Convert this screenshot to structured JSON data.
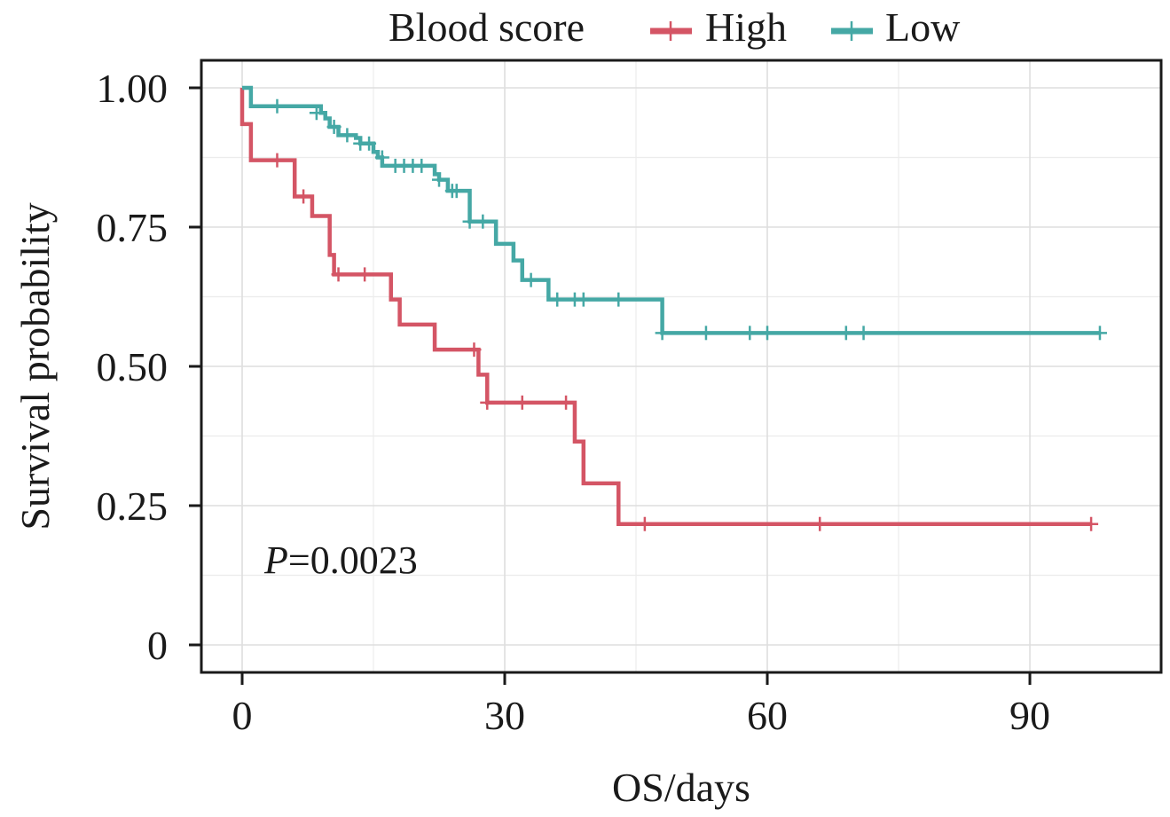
{
  "chart_data": {
    "type": "line",
    "subtype": "kaplan-meier",
    "title": "",
    "xlabel": "OS/days",
    "ylabel": "Survival probability",
    "xlim": [
      -3.5,
      106
    ],
    "ylim": [
      -0.1,
      1.07
    ],
    "xticks": [
      0,
      30,
      60,
      90
    ],
    "xtick_labels": [
      "0",
      "30",
      "60",
      "90"
    ],
    "yticks": [
      0,
      0.25,
      0.5,
      0.75,
      1.0
    ],
    "ytick_labels": [
      "0",
      "0.25",
      "0.50",
      "0.75",
      "1.00"
    ],
    "grid": true,
    "legend": {
      "title": "Blood score",
      "placement": "top",
      "entries": [
        "High",
        "Low"
      ]
    },
    "annotation": {
      "italic": "P",
      "text": "=0.0023"
    },
    "series": [
      {
        "name": "High",
        "color": "#D45565",
        "steps": [
          [
            0,
            1.0
          ],
          [
            0,
            0.935
          ],
          [
            1,
            0.87
          ],
          [
            6,
            0.805
          ],
          [
            8,
            0.77
          ],
          [
            10,
            0.7
          ],
          [
            10.5,
            0.665
          ],
          [
            17,
            0.62
          ],
          [
            18,
            0.575
          ],
          [
            22,
            0.53
          ],
          [
            27,
            0.485
          ],
          [
            28,
            0.435
          ],
          [
            38,
            0.365
          ],
          [
            39,
            0.29
          ],
          [
            43,
            0.217
          ],
          [
            97,
            0.217
          ]
        ],
        "censor": [
          [
            4,
            0.87
          ],
          [
            7,
            0.805
          ],
          [
            11,
            0.665
          ],
          [
            14,
            0.665
          ],
          [
            26.5,
            0.53
          ],
          [
            28,
            0.435
          ],
          [
            32,
            0.435
          ],
          [
            37,
            0.435
          ],
          [
            46,
            0.217
          ],
          [
            66,
            0.217
          ],
          [
            97,
            0.217
          ]
        ]
      },
      {
        "name": "Low",
        "color": "#45A8A5",
        "steps": [
          [
            0,
            1.0
          ],
          [
            1,
            0.967
          ],
          [
            9,
            0.955
          ],
          [
            9.5,
            0.945
          ],
          [
            10,
            0.93
          ],
          [
            11,
            0.915
          ],
          [
            13,
            0.91
          ],
          [
            13.5,
            0.9
          ],
          [
            15,
            0.885
          ],
          [
            15.5,
            0.875
          ],
          [
            16,
            0.86
          ],
          [
            21,
            0.86
          ],
          [
            22,
            0.845
          ],
          [
            22.5,
            0.835
          ],
          [
            23.5,
            0.815
          ],
          [
            26,
            0.76
          ],
          [
            29,
            0.72
          ],
          [
            31,
            0.69
          ],
          [
            32,
            0.655
          ],
          [
            35,
            0.62
          ],
          [
            48,
            0.56
          ],
          [
            98,
            0.56
          ]
        ],
        "censor": [
          [
            4,
            0.967
          ],
          [
            8.5,
            0.955
          ],
          [
            10.5,
            0.93
          ],
          [
            12,
            0.915
          ],
          [
            13.5,
            0.9
          ],
          [
            14.5,
            0.9
          ],
          [
            16,
            0.875
          ],
          [
            17.5,
            0.86
          ],
          [
            18.5,
            0.86
          ],
          [
            19.5,
            0.86
          ],
          [
            20.5,
            0.86
          ],
          [
            22.5,
            0.835
          ],
          [
            24,
            0.815
          ],
          [
            24.5,
            0.815
          ],
          [
            26,
            0.76
          ],
          [
            27.5,
            0.76
          ],
          [
            33,
            0.655
          ],
          [
            36,
            0.62
          ],
          [
            38,
            0.62
          ],
          [
            39,
            0.62
          ],
          [
            43,
            0.62
          ],
          [
            48,
            0.56
          ],
          [
            53,
            0.56
          ],
          [
            58,
            0.56
          ],
          [
            60,
            0.56
          ],
          [
            69,
            0.56
          ],
          [
            71,
            0.56
          ],
          [
            98,
            0.56
          ]
        ]
      }
    ]
  }
}
